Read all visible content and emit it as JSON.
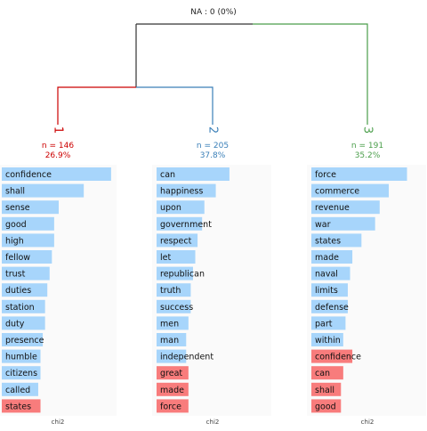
{
  "header": {
    "na_label": "NA : 0 (0%)"
  },
  "colors": {
    "tree_root": "#333333",
    "cluster_1": "#cc0000",
    "cluster_2": "#3a7fb8",
    "cluster_3": "#4a9e4a",
    "bar_positive": "#a7d5fb",
    "bar_negative": "#f87c7c",
    "panel_bg": "#fafafa"
  },
  "chart_data": {
    "type": "bar",
    "subtype": "cluster dendrogram with per-cluster horizontal chi2 term bars",
    "xlabel": "chi2",
    "clusters": [
      {
        "id": "1",
        "n_label": "n = 146",
        "pct_label": "26.9%",
        "terms": [
          "confidence",
          "shall",
          "sense",
          "good",
          "high",
          "fellow",
          "trust",
          "duties",
          "station",
          "duty",
          "presence",
          "humble",
          "citizens",
          "called",
          "states"
        ],
        "values": [
          48,
          36,
          25,
          23,
          23,
          22,
          21,
          20,
          19,
          19,
          18,
          17,
          17,
          16,
          17
        ],
        "signs": [
          "+",
          "+",
          "+",
          "+",
          "+",
          "+",
          "+",
          "+",
          "+",
          "+",
          "+",
          "+",
          "+",
          "+",
          "-"
        ]
      },
      {
        "id": "2",
        "n_label": "n = 205",
        "pct_label": "37.8%",
        "terms": [
          "can",
          "happiness",
          "upon",
          "government",
          "respect",
          "let",
          "republican",
          "truth",
          "success",
          "men",
          "man",
          "independent",
          "great",
          "made",
          "force"
        ],
        "values": [
          32,
          26,
          21,
          20,
          18,
          17,
          16,
          15,
          15,
          14,
          13,
          13,
          14,
          14,
          14
        ],
        "signs": [
          "+",
          "+",
          "+",
          "+",
          "+",
          "+",
          "+",
          "+",
          "+",
          "+",
          "+",
          "+",
          "-",
          "-",
          "-"
        ]
      },
      {
        "id": "3",
        "n_label": "n = 191",
        "pct_label": "35.2%",
        "terms": [
          "force",
          "commerce",
          "revenue",
          "war",
          "states",
          "made",
          "naval",
          "limits",
          "defense",
          "part",
          "within",
          "confidence",
          "can",
          "shall",
          "good"
        ],
        "values": [
          42,
          34,
          30,
          28,
          22,
          18,
          17,
          16,
          16,
          15,
          14,
          18,
          14,
          13,
          13
        ],
        "signs": [
          "+",
          "+",
          "+",
          "+",
          "+",
          "+",
          "+",
          "+",
          "+",
          "+",
          "+",
          "-",
          "-",
          "-",
          "-"
        ]
      }
    ]
  }
}
